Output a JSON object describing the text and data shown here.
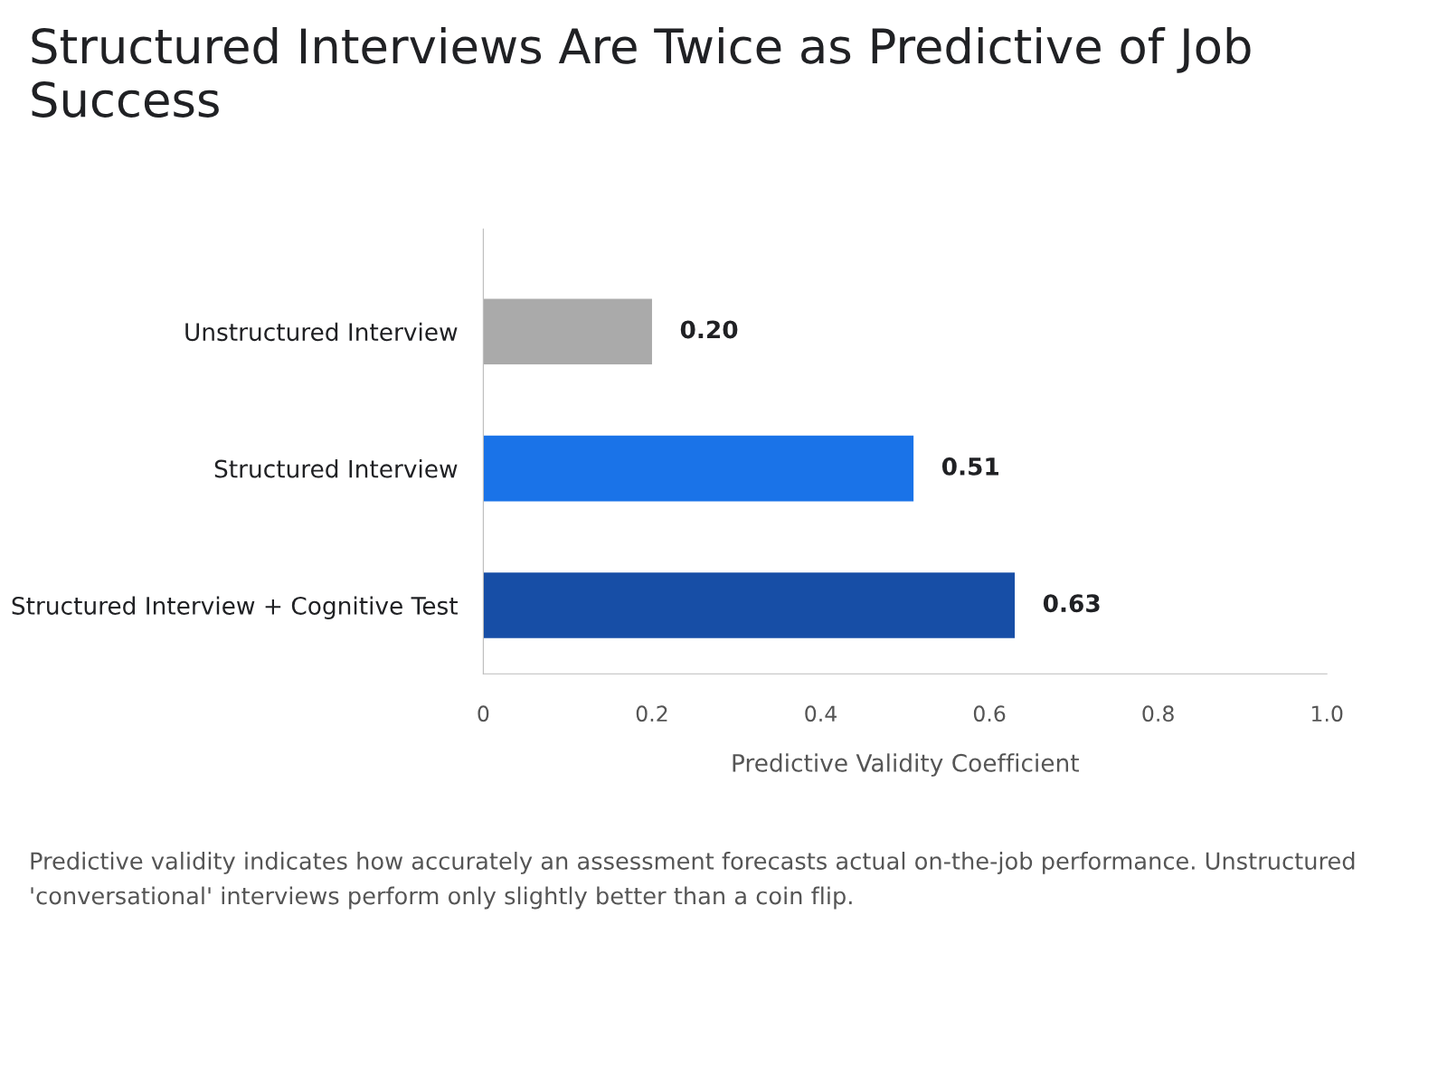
{
  "chart_data": {
    "type": "bar",
    "orientation": "horizontal",
    "title": "Structured Interviews Are Twice as Predictive of Job Success",
    "xlabel": "Predictive Validity Coefficient",
    "categories": [
      "Unstructured Interview",
      "Structured Interview",
      "Structured Interview + Cognitive Test"
    ],
    "values": [
      0.2,
      0.51,
      0.63
    ],
    "colors": [
      "#aaaaaa",
      "#1a73e8",
      "#174ea6"
    ],
    "xlim": [
      0,
      1.0
    ],
    "xticks": [
      0,
      0.2,
      0.4,
      0.6,
      0.8,
      {
        "value": 1.0,
        "label": "1.0"
      }
    ],
    "data_labels": true,
    "value_labels": [
      "0.20",
      "0.51",
      "0.63"
    ],
    "grid": false,
    "legend": false,
    "annotations": [
      "Predictive validity indicates how accurately an assessment forecasts actual on-the-job performance. Unstructured 'conversational' interviews perform only slightly better than a coin flip."
    ]
  }
}
